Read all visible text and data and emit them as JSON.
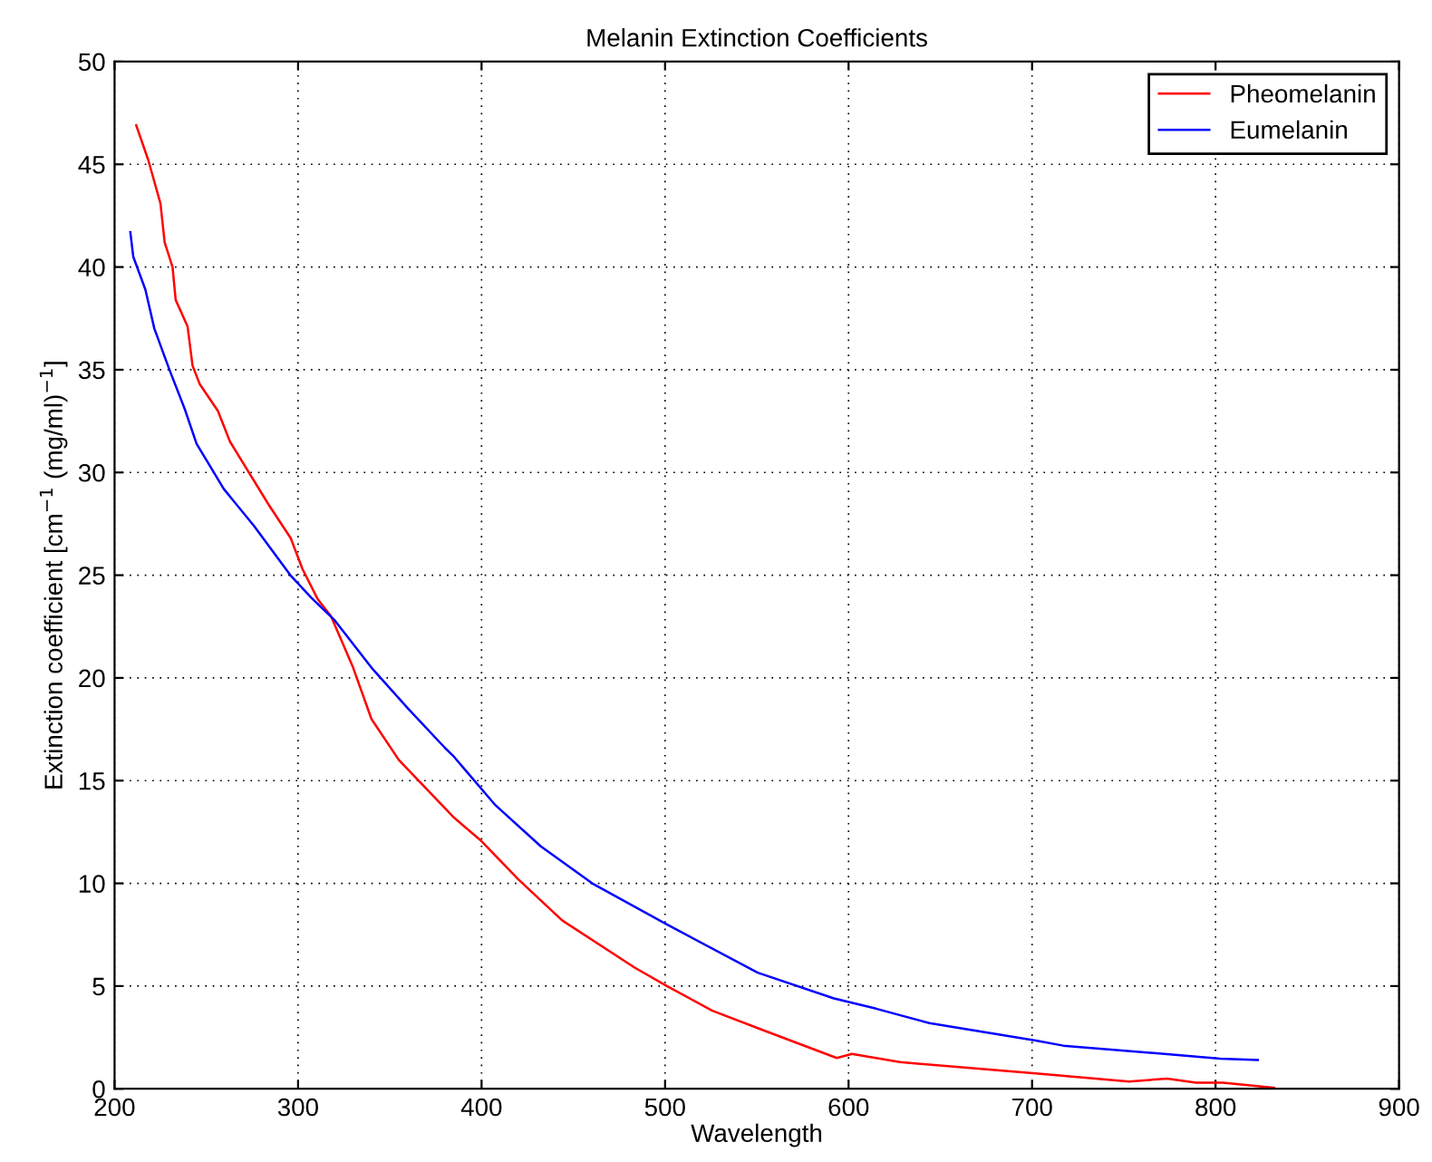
{
  "chart_data": {
    "type": "line",
    "title": "Melanin Extinction Coefficients",
    "xlabel": "Wavelength",
    "ylabel": "Extinction coefficient [cm$^{−1}$ (mg/ml)$^{−1}$]",
    "xlim": [
      200,
      900
    ],
    "xticks": [
      200,
      300,
      400,
      500,
      600,
      700,
      800,
      900
    ],
    "ylim": [
      0,
      50
    ],
    "yticks": [
      0,
      5,
      10,
      15,
      20,
      25,
      30,
      35,
      40,
      45,
      50
    ],
    "grid": true,
    "legend": "top right",
    "line_style": "solid",
    "marker": "none",
    "series": [
      {
        "name": "Pheomelanin",
        "color": "#ff0000",
        "x": [
          211.8,
          218.4,
          225,
          227.3,
          231.6,
          233.3,
          239.8,
          242.5,
          246.4,
          256.3,
          262.9,
          284.2,
          296,
          302.4,
          310.6,
          318,
          330,
          340,
          355,
          370,
          385,
          399.4,
          420,
          443.9,
          483.4,
          501,
          525.8,
          555,
          593.6,
          601.8,
          628,
          681,
          702,
          752.9,
          773.6,
          789.4,
          804,
          832
        ],
        "values": [
          46.9,
          45.2,
          43.1,
          41.2,
          40.0,
          38.4,
          37.1,
          35.2,
          34.3,
          33.0,
          31.5,
          28.4,
          26.8,
          25.3,
          23.85,
          23.0,
          20.5,
          18.0,
          16.0,
          14.6,
          13.2,
          12.1,
          10.2,
          8.2,
          5.9,
          5.0,
          3.8,
          2.8,
          1.5,
          1.7,
          1.3,
          0.9,
          0.75,
          0.35,
          0.5,
          0.3,
          0.3,
          0.05
        ]
      },
      {
        "name": "Eumelanin",
        "color": "#0000ff",
        "x": [
          208.6,
          210.2,
          216.8,
          221.7,
          229.9,
          238.2,
          244.7,
          259.5,
          276,
          295.8,
          307.3,
          320,
          340,
          360,
          380,
          384.6,
          407.6,
          432.3,
          460.3,
          501,
          550.5,
          592,
          615,
          644,
          702,
          717,
          802.6,
          823
        ],
        "values": [
          41.7,
          40.5,
          38.9,
          37.0,
          35.0,
          33.1,
          31.4,
          29.2,
          27.4,
          25.0,
          23.9,
          22.8,
          20.5,
          18.5,
          16.6,
          16.2,
          13.8,
          11.8,
          10.0,
          8.0,
          5.65,
          4.4,
          3.9,
          3.2,
          2.35,
          2.1,
          1.47,
          1.4
        ]
      }
    ]
  }
}
